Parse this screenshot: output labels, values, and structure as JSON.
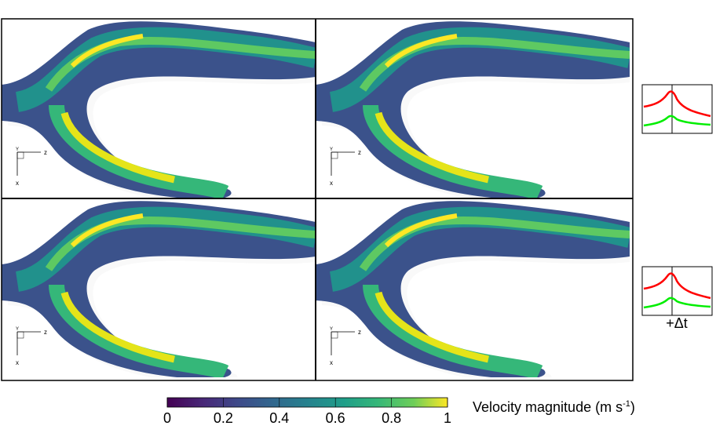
{
  "axis_labels": {
    "y": "Y",
    "z": "z",
    "x": "x"
  },
  "inset_label": "+Δt",
  "colorbar": {
    "ticks": [
      0,
      0.2,
      0.4,
      0.6,
      0.8,
      1
    ],
    "label_prefix": "Velocity magnitude (m s",
    "label_superscript": "-1",
    "label_suffix": ")"
  }
}
